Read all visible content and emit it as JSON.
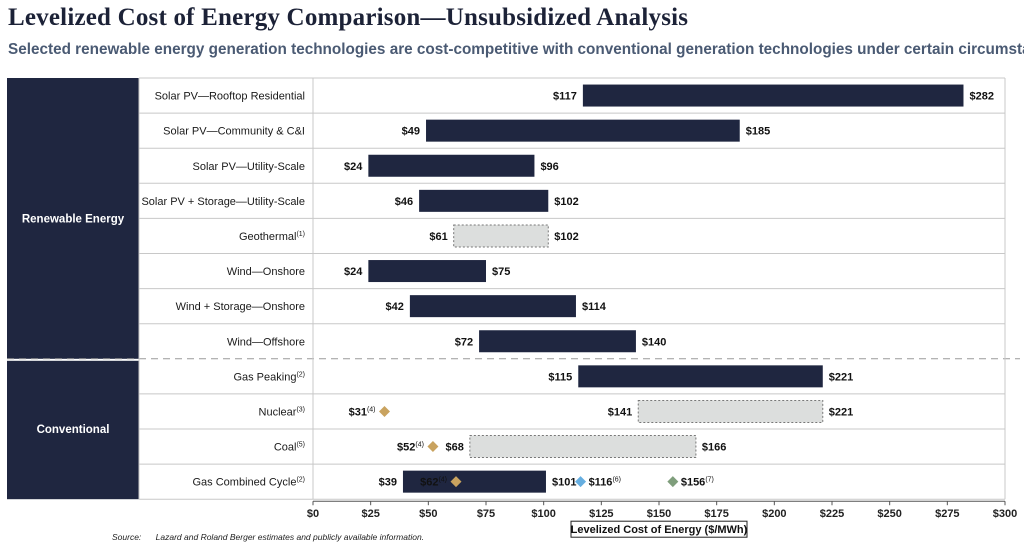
{
  "title": "Levelized Cost of Energy Comparison—Unsubsidized Analysis",
  "subtitle": "Selected renewable energy generation technologies are cost-competitive with conventional generation technologies under certain circumstances",
  "source_label": "Source:",
  "source_text": "Lazard and Roland Berger estimates and publicly available information.",
  "colors": {
    "bar": "#1f2640",
    "bar_light": "#dcdedd",
    "marker_gold": "#c9a35f",
    "marker_blue": "#66aee0",
    "marker_green": "#7f9e7c",
    "group_bg": "#1f2640",
    "label_gold": "#c9a35f",
    "label_blue": "#66aee0",
    "label_green": "#7f9e7c"
  },
  "chart_data": {
    "type": "bar",
    "orientation": "horizontal-range",
    "xlabel": "Levelized Cost of Energy ($/MWh)",
    "xlim": [
      0,
      300
    ],
    "xticks": [
      "$0",
      "$25",
      "$50",
      "$75",
      "$100",
      "$125",
      "$150",
      "$175",
      "$200",
      "$225",
      "$250",
      "$275",
      "$300"
    ],
    "groups": [
      {
        "name": "Renewable Energy",
        "rows": [
          0,
          7
        ]
      },
      {
        "name": "Conventional",
        "rows": [
          8,
          11
        ]
      }
    ],
    "rows": [
      {
        "label": "Solar PV—Rooftop Residential",
        "sup": "",
        "low": 117,
        "high": 282,
        "low_label": "$117",
        "high_label": "$282",
        "style": "solid"
      },
      {
        "label": "Solar PV—Community & C&I",
        "sup": "",
        "low": 49,
        "high": 185,
        "low_label": "$49",
        "high_label": "$185",
        "style": "solid"
      },
      {
        "label": "Solar PV—Utility-Scale",
        "sup": "",
        "low": 24,
        "high": 96,
        "low_label": "$24",
        "high_label": "$96",
        "style": "solid"
      },
      {
        "label": "Solar PV + Storage—Utility-Scale",
        "sup": "",
        "low": 46,
        "high": 102,
        "low_label": "$46",
        "high_label": "$102",
        "style": "solid"
      },
      {
        "label": "Geothermal",
        "sup": "(1)",
        "low": 61,
        "high": 102,
        "low_label": "$61",
        "high_label": "$102",
        "style": "dashed"
      },
      {
        "label": "Wind—Onshore",
        "sup": "",
        "low": 24,
        "high": 75,
        "low_label": "$24",
        "high_label": "$75",
        "style": "solid"
      },
      {
        "label": "Wind + Storage—Onshore",
        "sup": "",
        "low": 42,
        "high": 114,
        "low_label": "$42",
        "high_label": "$114",
        "style": "solid"
      },
      {
        "label": "Wind—Offshore",
        "sup": "",
        "low": 72,
        "high": 140,
        "low_label": "$72",
        "high_label": "$140",
        "style": "solid"
      },
      {
        "label": "Gas Peaking",
        "sup": "(2)",
        "low": 115,
        "high": 221,
        "low_label": "$115",
        "high_label": "$221",
        "style": "solid"
      },
      {
        "label": "Nuclear",
        "sup": "(3)",
        "low": 141,
        "high": 221,
        "low_label": "$141",
        "high_label": "$221",
        "style": "dashed",
        "markers": [
          {
            "value": 31,
            "label": "$31",
            "sup": "(4)",
            "color": "gold",
            "side": "left"
          }
        ]
      },
      {
        "label": "Coal",
        "sup": "(5)",
        "low": 68,
        "high": 166,
        "low_label": "$68",
        "high_label": "$166",
        "style": "dashed",
        "markers": [
          {
            "value": 52,
            "label": "$52",
            "sup": "(4)",
            "color": "gold",
            "side": "left"
          }
        ]
      },
      {
        "label": "Gas Combined Cycle",
        "sup": "(2)",
        "low": 39,
        "high": 101,
        "low_label": "$39",
        "high_label": "$101",
        "style": "solid",
        "markers": [
          {
            "value": 62,
            "label": "$62",
            "sup": "(4)",
            "color": "gold",
            "side": "left"
          },
          {
            "value": 116,
            "label": "$116",
            "sup": "(6)",
            "color": "blue",
            "side": "right"
          },
          {
            "value": 156,
            "label": "$156",
            "sup": "(7)",
            "color": "green",
            "side": "right"
          }
        ]
      }
    ]
  }
}
